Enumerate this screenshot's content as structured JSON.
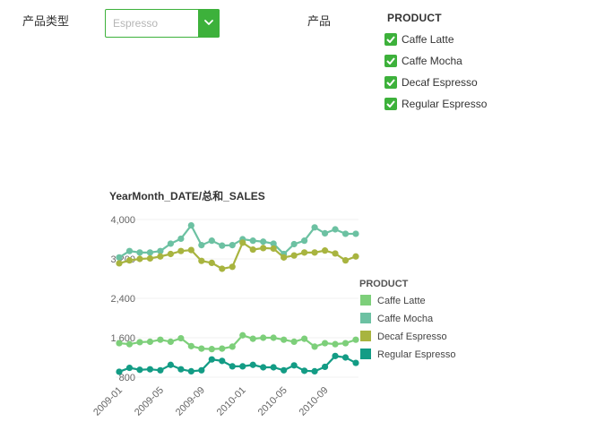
{
  "filters": {
    "type_label": "产品类型",
    "type_select": {
      "value": "Espresso"
    },
    "product_label": "产品",
    "product_checklist": {
      "title": "PRODUCT",
      "items": [
        {
          "label": "Caffe Latte",
          "checked": true
        },
        {
          "label": "Caffe Mocha",
          "checked": true
        },
        {
          "label": "Decaf Espresso",
          "checked": true
        },
        {
          "label": "Regular Espresso",
          "checked": true
        }
      ]
    }
  },
  "colors": {
    "accent": "#3db13b"
  },
  "icons": {
    "select_arrow": "chevron-down-icon",
    "checkbox": "check-icon"
  },
  "chart_data": {
    "type": "line",
    "title": "YearMonth_DATE/总和_SALES",
    "x": [
      "2009-01",
      "2009-02",
      "2009-03",
      "2009-04",
      "2009-05",
      "2009-06",
      "2009-07",
      "2009-08",
      "2009-09",
      "2009-10",
      "2009-11",
      "2009-12",
      "2010-01",
      "2010-02",
      "2010-03",
      "2010-04",
      "2010-05",
      "2010-06",
      "2010-07",
      "2010-08",
      "2010-09",
      "2010-10",
      "2010-11",
      "2010-12"
    ],
    "x_tick_labels": [
      "2009-01",
      "2009-05",
      "2009-09",
      "2010-01",
      "2010-05",
      "2010-09"
    ],
    "y_tick_labels": [
      "800",
      "1,600",
      "2,400",
      "3,200",
      "4,000"
    ],
    "ylim": [
      800,
      4000
    ],
    "grid": true,
    "legend": {
      "title": "PRODUCT",
      "position": "right"
    },
    "series": [
      {
        "name": "Caffe Latte",
        "color": "#7dcf7a",
        "values": [
          1490,
          1470,
          1510,
          1520,
          1560,
          1520,
          1590,
          1430,
          1380,
          1370,
          1380,
          1420,
          1650,
          1580,
          1600,
          1600,
          1560,
          1520,
          1580,
          1420,
          1490,
          1470,
          1490,
          1560
        ]
      },
      {
        "name": "Caffe Mocha",
        "color": "#6cc1a2",
        "values": [
          3230,
          3360,
          3330,
          3330,
          3360,
          3510,
          3610,
          3880,
          3480,
          3570,
          3470,
          3480,
          3600,
          3570,
          3550,
          3510,
          3300,
          3500,
          3570,
          3840,
          3720,
          3800,
          3710,
          3710
        ]
      },
      {
        "name": "Decaf Espresso",
        "color": "#a8b43f",
        "values": [
          3110,
          3170,
          3200,
          3210,
          3250,
          3300,
          3360,
          3380,
          3160,
          3120,
          3000,
          3040,
          3530,
          3390,
          3420,
          3410,
          3230,
          3270,
          3330,
          3330,
          3370,
          3310,
          3170,
          3250
        ]
      },
      {
        "name": "Regular Espresso",
        "color": "#139c85",
        "values": [
          910,
          990,
          950,
          960,
          940,
          1050,
          960,
          920,
          940,
          1160,
          1130,
          1020,
          1020,
          1050,
          1000,
          1000,
          940,
          1040,
          930,
          920,
          1010,
          1230,
          1200,
          1090
        ]
      }
    ]
  }
}
